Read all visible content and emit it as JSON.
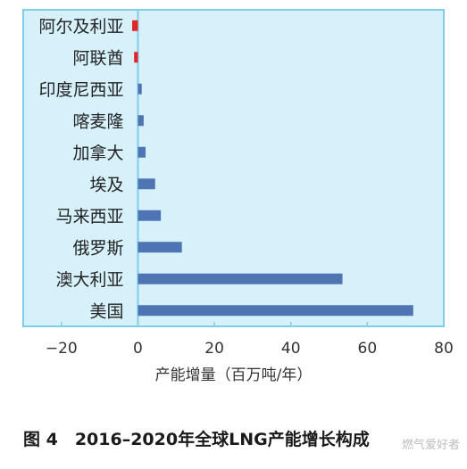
{
  "chart_data": {
    "type": "bar",
    "orientation": "horizontal",
    "categories": [
      "阿尔及利亚",
      "阿联酋",
      "印度尼西亚",
      "喀麦隆",
      "加拿大",
      "埃及",
      "马来西亚",
      "俄罗斯",
      "澳大利亚",
      "美国"
    ],
    "values": [
      -1.5,
      -1.0,
      1.0,
      1.5,
      2.0,
      4.5,
      6.0,
      11.5,
      53.5,
      72.0
    ],
    "xlim": [
      -30,
      80
    ],
    "xticks": [
      -20,
      0,
      20,
      40,
      60,
      80
    ],
    "xlabel": "产能增量（百万吨/年）",
    "ylabel": "",
    "grid": false,
    "colors": {
      "positive": "#4f74b4",
      "negative": "#e0262a",
      "plot_bg": "#d7f1fb",
      "border": "#7fcde8"
    }
  },
  "caption": "图 4　2016–2020年全球LNG产能增长构成",
  "watermark": "燃气爱好者"
}
